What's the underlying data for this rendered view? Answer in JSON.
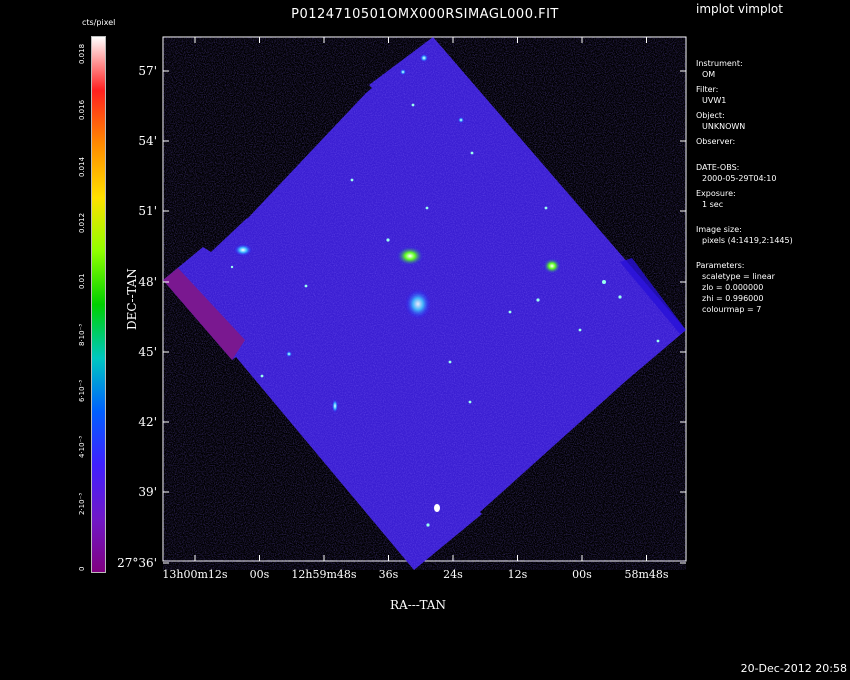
{
  "app": {
    "title": "implot vimplot",
    "timestamp": "20-Dec-2012 20:58"
  },
  "image": {
    "filename": "P0124710501OMX000RSIMAGL000.FIT"
  },
  "colorbar": {
    "label": "cts/pixel",
    "ticks": [
      "0",
      "2·10⁻³",
      "4·10⁻³",
      "6·10⁻³",
      "8·10⁻³",
      "0.01",
      "0.012",
      "0.014",
      "0.016",
      "0.018"
    ],
    "colormap": [
      "#ffffff",
      "#ff2020",
      "#ff8a00",
      "#ffe000",
      "#90ff00",
      "#00d000",
      "#00c8c0",
      "#0060ff",
      "#4020ff",
      "#7018c8",
      "#800080"
    ]
  },
  "info": {
    "instrument_label": "Instrument:",
    "instrument": "OM",
    "filter_label": "Filter:",
    "filter": "UVW1",
    "object_label": "Object:",
    "object": "UNKNOWN",
    "observer_label": "Observer:",
    "observer": "",
    "date_label": "DATE-OBS:",
    "date": "2000-05-29T04:10",
    "exposure_label": "Exposure:",
    "exposure": "1 sec",
    "size_label": "Image size:",
    "size": "pixels (4:1419,2:1445)",
    "params_label": "Parameters:",
    "scaletype": "scaletype = linear",
    "zlo": "zlo = 0.000000",
    "zhi": "zhi = 0.996000",
    "colourmap": "colourmap =   7"
  },
  "chart_data": {
    "type": "image",
    "title": "P0124710501OMX000RSIMAGL000.FIT",
    "xlabel": "RA---TAN",
    "ylabel": "DEC--TAN",
    "x_ticks": [
      "13h00m12s",
      "00s",
      "12h59m48s",
      "36s",
      "24s",
      "12s",
      "00s",
      "58m48s"
    ],
    "y_ticks": [
      "27°36'",
      "39'",
      "42'",
      "45'",
      "48'",
      "51'",
      "54'",
      "57'"
    ],
    "colorbar_range": [
      0,
      0.019
    ],
    "scale": "linear"
  }
}
